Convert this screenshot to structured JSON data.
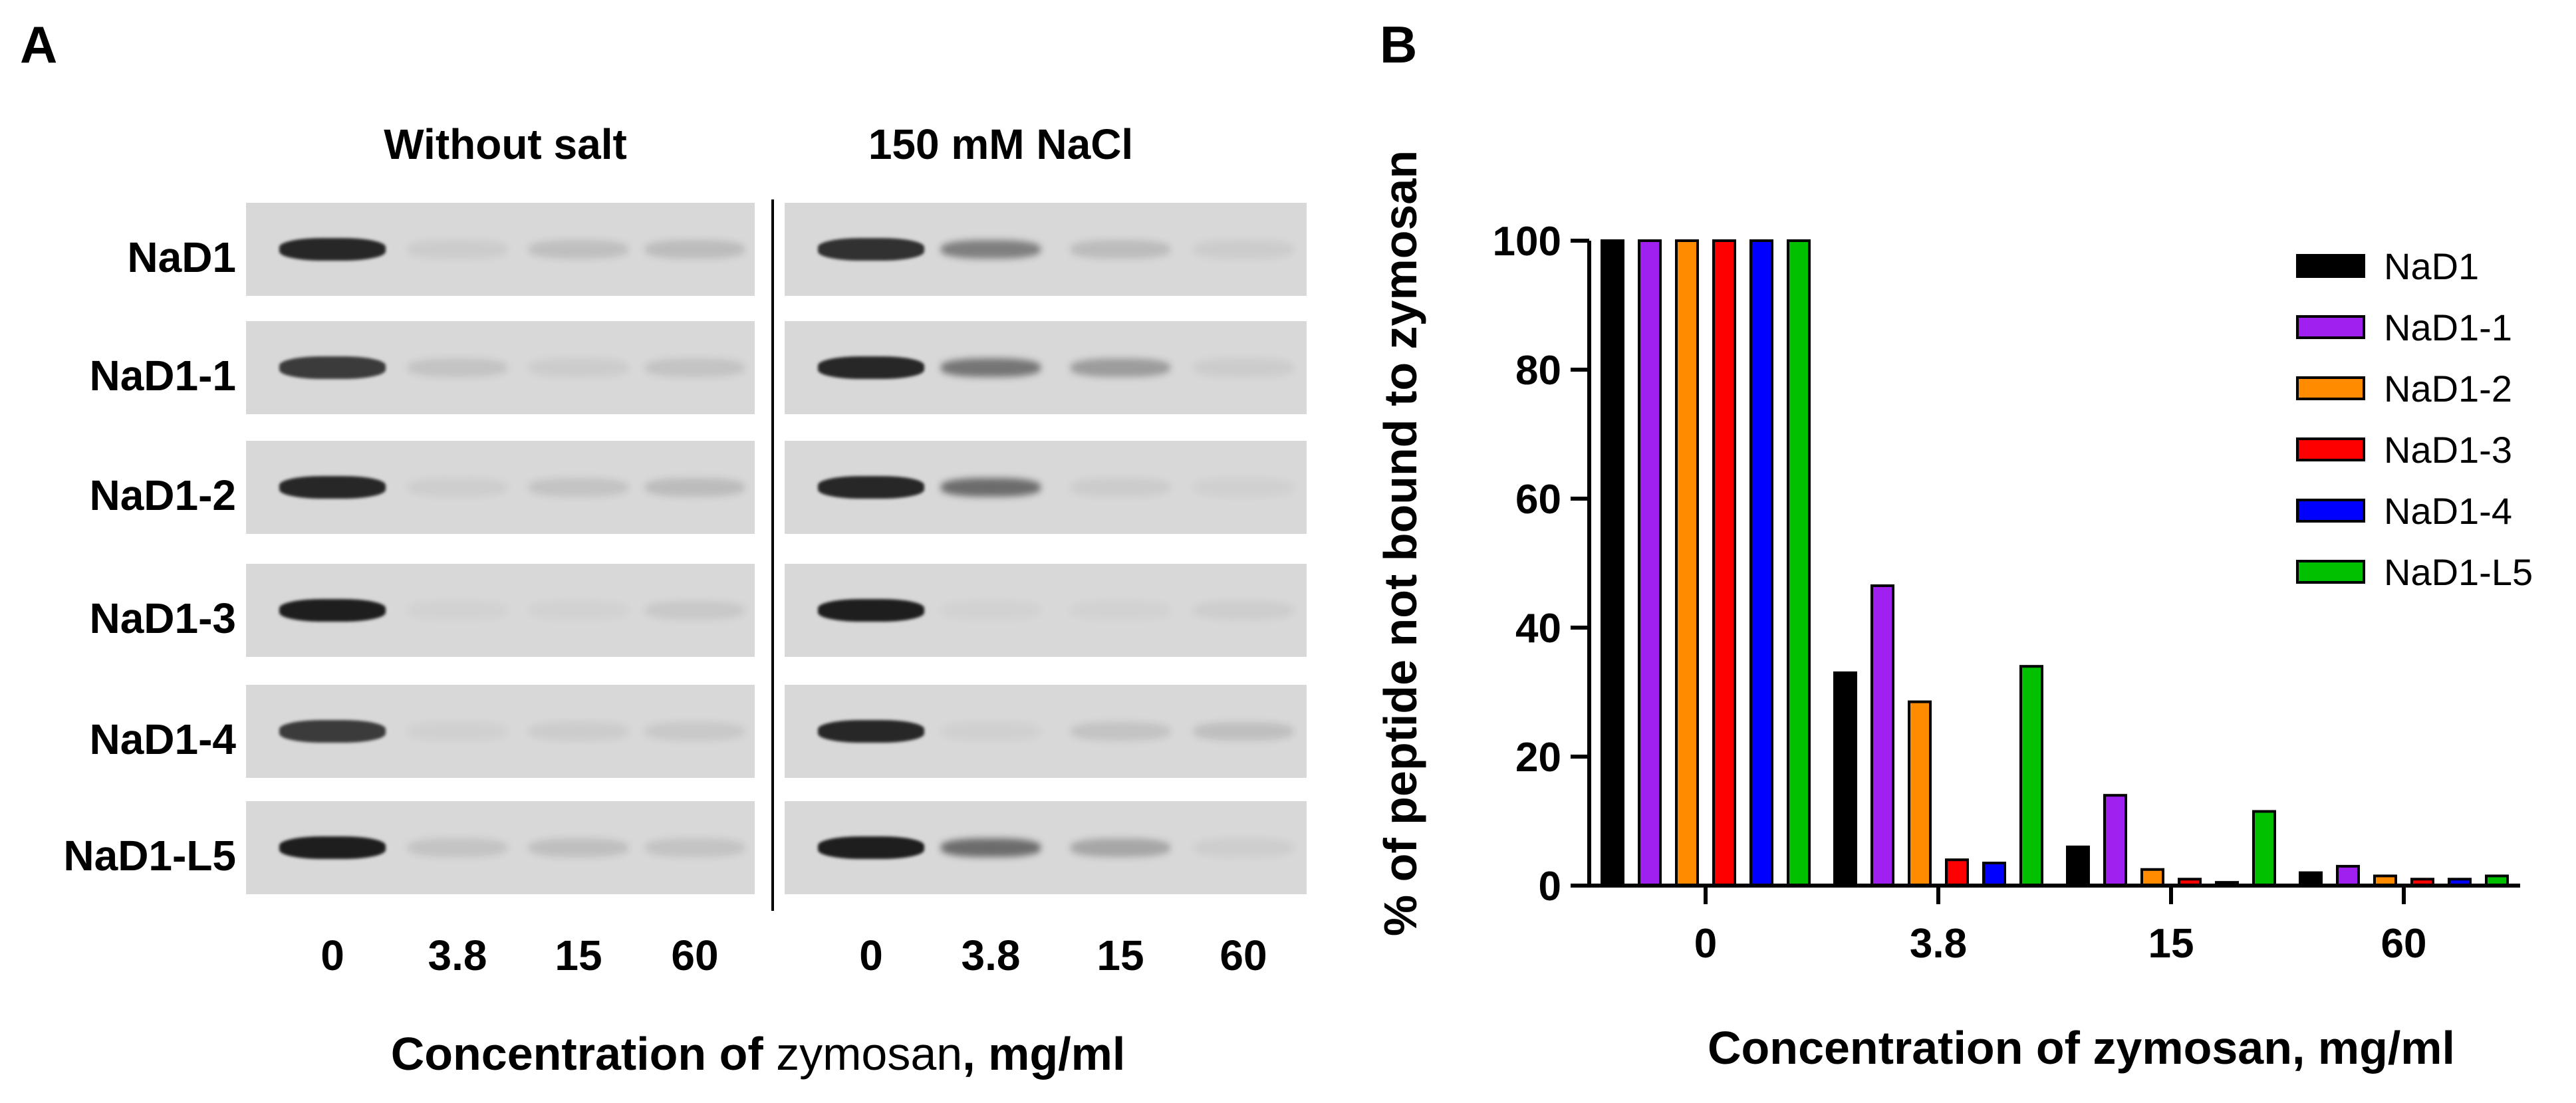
{
  "panel_a": {
    "letter": "A",
    "left_title": "Without salt",
    "right_title": "150 mM NaCl",
    "rows": [
      "NaD1",
      "NaD1-1",
      "NaD1-2",
      "NaD1-3",
      "NaD1-4",
      "NaD1-L5"
    ],
    "lane_labels_left": [
      "0",
      "3.8",
      "15",
      "60"
    ],
    "lane_labels_right": [
      "0",
      "3.8",
      "15",
      "60"
    ],
    "xlabel_prefix": "Concentration of ",
    "xlabel_middle": "zymosan",
    "xlabel_suffix": ", mg/ml"
  },
  "panel_b": {
    "letter": "B"
  },
  "chart_data": {
    "type": "bar",
    "title": "",
    "xlabel": "Concentration of zymosan, mg/ml",
    "ylabel": "% of peptide not bound to zymosan",
    "categories": [
      "0",
      "3.8",
      "15",
      "60"
    ],
    "ylim": [
      0,
      100
    ],
    "yticks": [
      "0",
      "20",
      "40",
      "60",
      "80",
      "100"
    ],
    "legend_position": "right",
    "series": [
      {
        "name": "NaD1",
        "color": "#000000",
        "values": [
          100,
          33,
          6,
          2
        ]
      },
      {
        "name": "NaD1-1",
        "color": "#a020f0",
        "values": [
          100,
          46.5,
          14,
          3
        ]
      },
      {
        "name": "NaD1-2",
        "color": "#ff8c00",
        "values": [
          100,
          28.5,
          2.5,
          1.5
        ]
      },
      {
        "name": "NaD1-3",
        "color": "#ff0000",
        "values": [
          100,
          4,
          1,
          1
        ]
      },
      {
        "name": "NaD1-4",
        "color": "#0000ff",
        "values": [
          100,
          3.5,
          0.5,
          1
        ]
      },
      {
        "name": "NaD1-L5",
        "color": "#00c000",
        "values": [
          100,
          34,
          11.5,
          1.5
        ]
      }
    ]
  }
}
